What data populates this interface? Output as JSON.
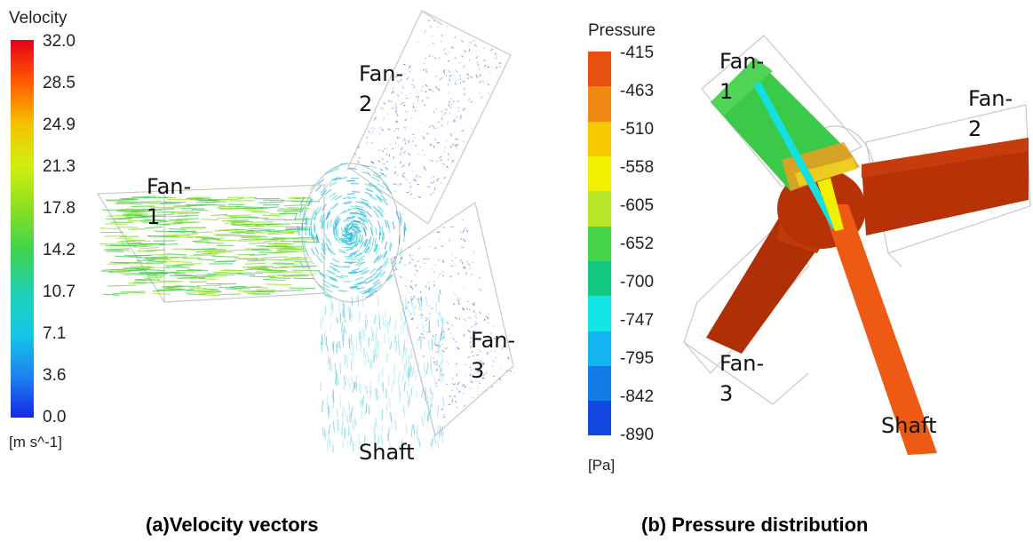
{
  "panel_a": {
    "colorbar": {
      "title": "Velocity",
      "unit": "[m s^-1]",
      "ticks": [
        "32.0",
        "28.5",
        "24.9",
        "21.3",
        "17.8",
        "14.2",
        "10.7",
        "7.1",
        "3.6",
        "0.0"
      ],
      "colors": [
        "#e8001a",
        "#ff5a00",
        "#f5b400",
        "#f0f000",
        "#a8e61e",
        "#3cd24a",
        "#1ed2b4",
        "#14d2e6",
        "#1e8cf0",
        "#1428e6"
      ]
    },
    "labels": {
      "fan1_a": "Fan-",
      "fan1_b": "1",
      "fan2_a": "Fan-",
      "fan2_b": "2",
      "fan3_a": "Fan-",
      "fan3_b": "3",
      "shaft": "Shaft"
    },
    "caption": "(a)Velocity vectors"
  },
  "panel_b": {
    "colorbar": {
      "title": "Pressure",
      "unit": "[Pa]",
      "ticks": [
        "-415",
        "-463",
        "-510",
        "-558",
        "-605",
        "-652",
        "-700",
        "-747",
        "-795",
        "-842",
        "-890"
      ],
      "colors": [
        "#e85010",
        "#f08a14",
        "#f5c800",
        "#f0f000",
        "#b8e628",
        "#46d24a",
        "#14c882",
        "#14e6e6",
        "#14b4f0",
        "#147ce6",
        "#1446e0"
      ]
    },
    "labels": {
      "fan1_a": "Fan-",
      "fan1_b": "1",
      "fan2_a": "Fan-",
      "fan2_b": "2",
      "fan3_a": "Fan-",
      "fan3_b": "3",
      "shaft": "Shaft"
    },
    "caption": "(b) Pressure distribution"
  }
}
